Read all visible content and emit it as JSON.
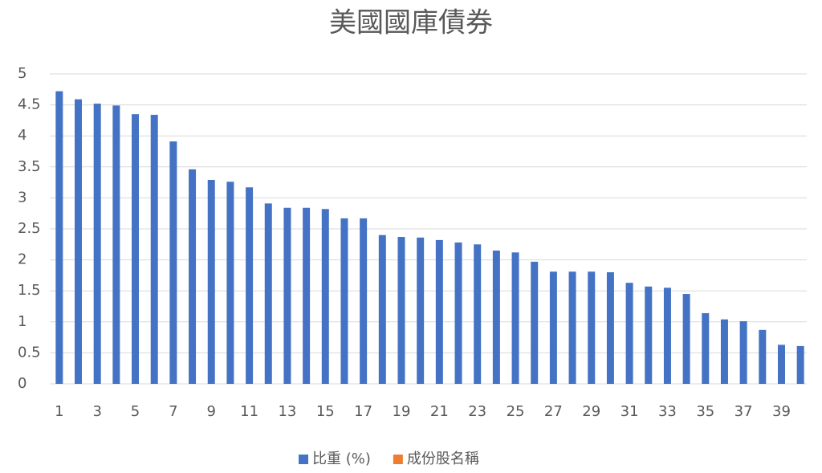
{
  "chart_data": {
    "type": "bar",
    "title": "美國國庫債券",
    "categories": [
      "1",
      null,
      "3",
      null,
      "5",
      null,
      "7",
      null,
      "9",
      null,
      "11",
      null,
      "13",
      null,
      "15",
      null,
      "17",
      null,
      "19",
      null,
      "21",
      null,
      "23",
      null,
      "25",
      null,
      "27",
      null,
      "29",
      null,
      "31",
      null,
      "33",
      null,
      "35",
      null,
      "37",
      null,
      "39",
      null
    ],
    "series": [
      {
        "name": "比重 (%)",
        "color": "#4472c4",
        "values": [
          4.72,
          4.59,
          4.52,
          4.49,
          4.35,
          4.34,
          3.91,
          3.46,
          3.29,
          3.26,
          3.17,
          2.91,
          2.84,
          2.84,
          2.82,
          2.67,
          2.67,
          2.4,
          2.37,
          2.36,
          2.32,
          2.28,
          2.25,
          2.15,
          2.12,
          1.97,
          1.81,
          1.81,
          1.81,
          1.8,
          1.63,
          1.57,
          1.55,
          1.45,
          1.14,
          1.04,
          1.01,
          0.87,
          0.63,
          0.61
        ]
      },
      {
        "name": "成份股名稱",
        "color": "#ed7d31",
        "values": [
          null,
          null,
          null,
          null,
          null,
          null,
          null,
          null,
          null,
          null,
          null,
          null,
          null,
          null,
          null,
          null,
          null,
          null,
          null,
          null,
          null,
          null,
          null,
          null,
          null,
          null,
          null,
          null,
          null,
          null,
          null,
          null,
          null,
          null,
          null,
          null,
          null,
          null,
          null,
          null
        ]
      }
    ],
    "ylim": [
      0,
      5
    ],
    "yticks": [
      0,
      0.5,
      1,
      1.5,
      2,
      2.5,
      3,
      3.5,
      4,
      4.5,
      5
    ],
    "grid": true,
    "legend": "bottom"
  }
}
